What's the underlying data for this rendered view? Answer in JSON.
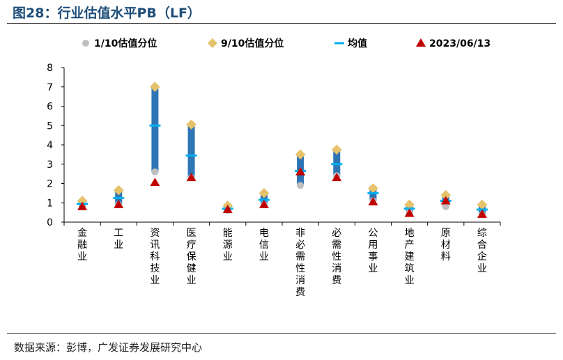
{
  "figure": {
    "title": "图28：行业估值水平PB（LF）",
    "source": "数据来源：彭博，广发证券发展研究中心"
  },
  "colors": {
    "title": "#1f4e79",
    "bar": "#2e75b6",
    "p10": "#bfbfbf",
    "p90": "#e6c36a",
    "mean": "#00b0f0",
    "current": "#c00000"
  },
  "chart_data": {
    "type": "range-bar",
    "ylim": [
      0,
      8
    ],
    "yticks": [
      0,
      1,
      2,
      3,
      4,
      5,
      6,
      7,
      8
    ],
    "grid": false,
    "legend_position": "top",
    "legend": [
      "1/10估值分位",
      "9/10估值分位",
      "均值",
      "2023/06/13"
    ],
    "categories": [
      "金融业",
      "工业",
      "资讯科技业",
      "医疗保健业",
      "能源业",
      "电信业",
      "非必需性消费",
      "必需性消费",
      "公用事业",
      "地产建筑业",
      "原材料",
      "综合企业"
    ],
    "series": [
      {
        "name": "1/10估值分位",
        "values": [
          0.8,
          0.9,
          2.6,
          2.3,
          0.6,
          0.9,
          1.9,
          2.4,
          1.1,
          0.5,
          0.8,
          0.4
        ]
      },
      {
        "name": "9/10估值分位",
        "values": [
          1.1,
          1.65,
          7.0,
          5.05,
          0.85,
          1.5,
          3.5,
          3.75,
          1.75,
          0.9,
          1.4,
          0.9
        ]
      },
      {
        "name": "均值",
        "values": [
          0.95,
          1.25,
          5.0,
          3.45,
          0.7,
          1.15,
          2.65,
          3.0,
          1.5,
          0.7,
          1.1,
          0.65
        ]
      },
      {
        "name": "2023/06/13",
        "values": [
          0.8,
          0.9,
          2.05,
          2.3,
          0.65,
          0.9,
          2.6,
          2.3,
          1.05,
          0.45,
          1.1,
          0.4
        ]
      }
    ]
  }
}
